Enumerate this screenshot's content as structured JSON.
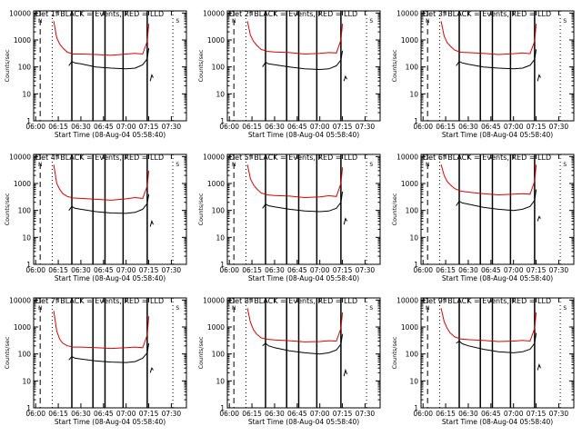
{
  "colors": {
    "events": "#000000",
    "lld": "#e00000",
    "axis": "#000000",
    "background": "#ffffff"
  },
  "legend_text": "BLACK = Events, RED = LLD",
  "xlabel": "Start Time (08-Aug-04 05:58:40)",
  "ylabel": "Counts/sec",
  "chart_data": [
    {
      "type": "line",
      "panel": 1,
      "title": "Det 1f",
      "x_ticks": [
        "06:00",
        "06:15",
        "06:30",
        "06:45",
        "07:00",
        "07:15",
        "07:30"
      ],
      "y_ticks": [
        "1",
        "10",
        "100",
        "1000",
        "10000"
      ],
      "yscale": "log",
      "xlim": [
        "05:58:40",
        "07:40"
      ],
      "ylim": [
        1,
        12000
      ],
      "solid_markers": [
        "06:24",
        "06:38",
        "06:46",
        "06:58",
        "07:14"
      ],
      "dashed_markers": [
        "06:03"
      ],
      "dotted_markers": [
        "06:11",
        "07:31"
      ],
      "annotations": [
        "N",
        "S"
      ],
      "series": [
        {
          "x": [
            "06:12",
            "06:14",
            "06:16",
            "06:18",
            "06:21",
            "06:25",
            "06:30",
            "06:40",
            "06:50",
            "07:00",
            "07:06",
            "07:11",
            "07:14",
            "07:15"
          ],
          "values": [
            5000,
            1200,
            700,
            500,
            350,
            300,
            300,
            290,
            270,
            300,
            320,
            300,
            900,
            4000
          ]
        },
        {
          "x": [
            "06:22",
            "06:24",
            "06:26",
            "06:30",
            "06:40",
            "06:50",
            "07:00",
            "07:06",
            "07:11",
            "07:14",
            "07:15"
          ],
          "values": [
            110,
            160,
            140,
            130,
            100,
            90,
            85,
            90,
            120,
            200,
            500
          ]
        },
        {
          "x": [
            "07:16",
            "07:17",
            "07:18"
          ],
          "values": [
            30,
            50,
            40
          ]
        }
      ]
    },
    {
      "type": "line",
      "panel": 2,
      "title": "Det 2f",
      "x_ticks": [
        "06:00",
        "06:15",
        "06:30",
        "06:45",
        "07:00",
        "07:15",
        "07:30"
      ],
      "y_ticks": [
        "1",
        "10",
        "100",
        "1000",
        "10000"
      ],
      "yscale": "log",
      "xlim": [
        "05:58:40",
        "07:40"
      ],
      "ylim": [
        1,
        12000
      ],
      "solid_markers": [
        "06:24",
        "06:38",
        "06:46",
        "06:58",
        "07:14"
      ],
      "dashed_markers": [
        "06:03"
      ],
      "dotted_markers": [
        "06:11",
        "07:31"
      ],
      "annotations": [
        "N",
        "S"
      ],
      "series": [
        {
          "x": [
            "06:12",
            "06:14",
            "06:16",
            "06:18",
            "06:21",
            "06:25",
            "06:30",
            "06:40",
            "06:50",
            "07:00",
            "07:06",
            "07:11",
            "07:14",
            "07:15"
          ],
          "values": [
            5000,
            1500,
            900,
            650,
            450,
            380,
            360,
            340,
            300,
            320,
            340,
            330,
            1000,
            4000
          ]
        },
        {
          "x": [
            "06:22",
            "06:24",
            "06:26",
            "06:30",
            "06:40",
            "06:50",
            "07:00",
            "07:06",
            "07:11",
            "07:14",
            "07:15"
          ],
          "values": [
            100,
            150,
            130,
            120,
            100,
            85,
            80,
            85,
            110,
            180,
            400
          ]
        },
        {
          "x": [
            "07:16",
            "07:17",
            "07:18"
          ],
          "values": [
            30,
            45,
            35
          ]
        }
      ]
    },
    {
      "type": "line",
      "panel": 3,
      "title": "Det 3f",
      "x_ticks": [
        "06:00",
        "06:15",
        "06:30",
        "06:45",
        "07:00",
        "07:15",
        "07:30"
      ],
      "y_ticks": [
        "1",
        "10",
        "100",
        "1000",
        "10000"
      ],
      "yscale": "log",
      "xlim": [
        "05:58:40",
        "07:40"
      ],
      "ylim": [
        1,
        12000
      ],
      "solid_markers": [
        "06:24",
        "06:38",
        "06:46",
        "06:58",
        "07:14"
      ],
      "dashed_markers": [
        "06:03"
      ],
      "dotted_markers": [
        "06:11",
        "07:31"
      ],
      "annotations": [
        "N",
        "S"
      ],
      "series": [
        {
          "x": [
            "06:12",
            "06:14",
            "06:16",
            "06:18",
            "06:21",
            "06:25",
            "06:30",
            "06:40",
            "06:50",
            "07:00",
            "07:06",
            "07:11",
            "07:14",
            "07:15"
          ],
          "values": [
            5000,
            1400,
            800,
            600,
            420,
            350,
            340,
            320,
            290,
            310,
            330,
            310,
            900,
            4000
          ]
        },
        {
          "x": [
            "06:22",
            "06:24",
            "06:26",
            "06:30",
            "06:40",
            "06:50",
            "07:00",
            "07:06",
            "07:11",
            "07:14",
            "07:15"
          ],
          "values": [
            110,
            160,
            140,
            125,
            100,
            90,
            85,
            90,
            115,
            190,
            450
          ]
        },
        {
          "x": [
            "07:16",
            "07:17",
            "07:18"
          ],
          "values": [
            30,
            50,
            40
          ]
        }
      ]
    },
    {
      "type": "line",
      "panel": 4,
      "title": "Det 4f",
      "x_ticks": [
        "06:00",
        "06:15",
        "06:30",
        "06:45",
        "07:00",
        "07:15",
        "07:30"
      ],
      "y_ticks": [
        "1",
        "10",
        "100",
        "1000",
        "10000"
      ],
      "yscale": "log",
      "xlim": [
        "05:58:40",
        "07:40"
      ],
      "ylim": [
        1,
        12000
      ],
      "solid_markers": [
        "06:24",
        "06:38",
        "06:46",
        "06:58",
        "07:14"
      ],
      "dashed_markers": [
        "06:03"
      ],
      "dotted_markers": [
        "06:11",
        "07:31"
      ],
      "annotations": [
        "N",
        "S"
      ],
      "series": [
        {
          "x": [
            "06:12",
            "06:14",
            "06:16",
            "06:18",
            "06:21",
            "06:25",
            "06:30",
            "06:40",
            "06:50",
            "07:00",
            "07:06",
            "07:11",
            "07:14",
            "07:15"
          ],
          "values": [
            5000,
            1000,
            600,
            420,
            330,
            290,
            280,
            260,
            240,
            270,
            300,
            280,
            800,
            3000
          ]
        },
        {
          "x": [
            "06:22",
            "06:24",
            "06:26",
            "06:30",
            "06:40",
            "06:50",
            "07:00",
            "07:06",
            "07:11",
            "07:14",
            "07:15"
          ],
          "values": [
            100,
            140,
            120,
            110,
            90,
            80,
            78,
            85,
            110,
            180,
            400
          ]
        },
        {
          "x": [
            "07:16",
            "07:17",
            "07:18"
          ],
          "values": [
            25,
            40,
            30
          ]
        }
      ]
    },
    {
      "type": "line",
      "panel": 5,
      "title": "Det 5f",
      "x_ticks": [
        "06:00",
        "06:15",
        "06:30",
        "06:45",
        "07:00",
        "07:15",
        "07:30"
      ],
      "y_ticks": [
        "1",
        "10",
        "100",
        "1000",
        "10000"
      ],
      "yscale": "log",
      "xlim": [
        "05:58:40",
        "07:40"
      ],
      "ylim": [
        1,
        12000
      ],
      "solid_markers": [
        "06:24",
        "06:38",
        "06:46",
        "06:58",
        "07:14"
      ],
      "dashed_markers": [
        "06:03"
      ],
      "dotted_markers": [
        "06:11",
        "07:31"
      ],
      "annotations": [
        "N",
        "S"
      ],
      "series": [
        {
          "x": [
            "06:12",
            "06:14",
            "06:16",
            "06:18",
            "06:21",
            "06:25",
            "06:30",
            "06:40",
            "06:50",
            "07:00",
            "07:06",
            "07:11",
            "07:14",
            "07:15"
          ],
          "values": [
            5000,
            1500,
            900,
            650,
            450,
            380,
            360,
            340,
            300,
            320,
            350,
            330,
            1000,
            4000
          ]
        },
        {
          "x": [
            "06:22",
            "06:24",
            "06:26",
            "06:30",
            "06:40",
            "06:50",
            "07:00",
            "07:06",
            "07:11",
            "07:14",
            "07:15"
          ],
          "values": [
            120,
            170,
            150,
            135,
            110,
            95,
            90,
            95,
            120,
            200,
            500
          ]
        },
        {
          "x": [
            "07:16",
            "07:17",
            "07:18"
          ],
          "values": [
            30,
            50,
            40
          ]
        }
      ]
    },
    {
      "type": "line",
      "panel": 6,
      "title": "Det 6f",
      "x_ticks": [
        "06:00",
        "06:15",
        "06:30",
        "06:45",
        "07:00",
        "07:15",
        "07:30"
      ],
      "y_ticks": [
        "1",
        "10",
        "100",
        "1000",
        "10000"
      ],
      "yscale": "log",
      "xlim": [
        "05:58:40",
        "07:40"
      ],
      "ylim": [
        1,
        12000
      ],
      "solid_markers": [
        "06:24",
        "06:38",
        "06:46",
        "06:58",
        "07:14"
      ],
      "dashed_markers": [
        "06:03"
      ],
      "dotted_markers": [
        "06:11",
        "07:31"
      ],
      "annotations": [
        "N",
        "S"
      ],
      "series": [
        {
          "x": [
            "06:12",
            "06:14",
            "06:16",
            "06:18",
            "06:21",
            "06:25",
            "06:30",
            "06:40",
            "06:50",
            "07:00",
            "07:06",
            "07:11",
            "07:14",
            "07:15"
          ],
          "values": [
            5000,
            2000,
            1200,
            900,
            650,
            520,
            480,
            420,
            380,
            400,
            420,
            400,
            1200,
            5000
          ]
        },
        {
          "x": [
            "06:22",
            "06:24",
            "06:26",
            "06:30",
            "06:40",
            "06:50",
            "07:00",
            "07:06",
            "07:11",
            "07:14",
            "07:15"
          ],
          "values": [
            150,
            220,
            190,
            170,
            130,
            110,
            100,
            110,
            140,
            240,
            600
          ]
        },
        {
          "x": [
            "07:16",
            "07:17",
            "07:18"
          ],
          "values": [
            40,
            60,
            50
          ]
        }
      ]
    },
    {
      "type": "line",
      "panel": 7,
      "title": "Det 7f",
      "x_ticks": [
        "06:00",
        "06:15",
        "06:30",
        "06:45",
        "07:00",
        "07:15",
        "07:30"
      ],
      "y_ticks": [
        "1",
        "10",
        "100",
        "1000",
        "10000"
      ],
      "yscale": "log",
      "xlim": [
        "05:58:40",
        "07:40"
      ],
      "ylim": [
        1,
        12000
      ],
      "solid_markers": [
        "06:24",
        "06:38",
        "06:46",
        "06:58",
        "07:14"
      ],
      "dashed_markers": [
        "06:03"
      ],
      "dotted_markers": [
        "06:11",
        "07:31"
      ],
      "annotations": [
        "N",
        "S"
      ],
      "series": [
        {
          "x": [
            "06:12",
            "06:14",
            "06:16",
            "06:18",
            "06:21",
            "06:25",
            "06:30",
            "06:40",
            "06:50",
            "07:00",
            "07:06",
            "07:11",
            "07:14",
            "07:15"
          ],
          "values": [
            4000,
            700,
            350,
            250,
            200,
            180,
            180,
            170,
            160,
            170,
            180,
            170,
            500,
            2500
          ]
        },
        {
          "x": [
            "06:22",
            "06:24",
            "06:26",
            "06:30",
            "06:40",
            "06:50",
            "07:00",
            "07:06",
            "07:11",
            "07:14",
            "07:15"
          ],
          "values": [
            60,
            80,
            70,
            65,
            55,
            50,
            48,
            52,
            70,
            110,
            250
          ]
        },
        {
          "x": [
            "07:16",
            "07:17",
            "07:18"
          ],
          "values": [
            20,
            30,
            25
          ]
        }
      ]
    },
    {
      "type": "line",
      "panel": 8,
      "title": "Det 8f",
      "x_ticks": [
        "06:00",
        "06:15",
        "06:30",
        "06:45",
        "07:00",
        "07:15",
        "07:30"
      ],
      "y_ticks": [
        "1",
        "10",
        "100",
        "1000",
        "10000"
      ],
      "yscale": "log",
      "xlim": [
        "05:58:40",
        "07:40"
      ],
      "ylim": [
        1,
        12000
      ],
      "solid_markers": [
        "06:24",
        "06:38",
        "06:46",
        "06:58",
        "07:14"
      ],
      "dashed_markers": [
        "06:03"
      ],
      "dotted_markers": [
        "06:11",
        "07:31"
      ],
      "annotations": [
        "N",
        "S"
      ],
      "series": [
        {
          "x": [
            "06:12",
            "06:14",
            "06:16",
            "06:18",
            "06:21",
            "06:25",
            "06:30",
            "06:40",
            "06:50",
            "07:00",
            "07:06",
            "07:11",
            "07:14",
            "07:15"
          ],
          "values": [
            5000,
            1500,
            800,
            550,
            400,
            350,
            330,
            310,
            280,
            290,
            310,
            300,
            900,
            3500
          ]
        },
        {
          "x": [
            "06:22",
            "06:24",
            "06:26",
            "06:30",
            "06:40",
            "06:50",
            "07:00",
            "07:06",
            "07:11",
            "07:14",
            "07:15"
          ],
          "values": [
            200,
            250,
            200,
            170,
            130,
            110,
            100,
            110,
            140,
            230,
            550
          ]
        },
        {
          "x": [
            "07:16",
            "07:17",
            "07:18"
          ],
          "values": [
            15,
            25,
            18
          ]
        }
      ]
    },
    {
      "type": "line",
      "panel": 9,
      "title": "Det 9f",
      "x_ticks": [
        "06:00",
        "06:15",
        "06:30",
        "06:45",
        "07:00",
        "07:15",
        "07:30"
      ],
      "y_ticks": [
        "1",
        "10",
        "100",
        "1000",
        "10000"
      ],
      "yscale": "log",
      "xlim": [
        "05:58:40",
        "07:40"
      ],
      "ylim": [
        1,
        12000
      ],
      "solid_markers": [
        "06:24",
        "06:38",
        "06:46",
        "06:58",
        "07:14"
      ],
      "dashed_markers": [
        "06:03"
      ],
      "dotted_markers": [
        "06:11",
        "07:31"
      ],
      "annotations": [
        "N",
        "S"
      ],
      "series": [
        {
          "x": [
            "06:12",
            "06:14",
            "06:16",
            "06:18",
            "06:21",
            "06:25",
            "06:30",
            "06:40",
            "06:50",
            "07:00",
            "07:06",
            "07:11",
            "07:14",
            "07:15"
          ],
          "values": [
            5000,
            1600,
            900,
            600,
            430,
            360,
            340,
            320,
            290,
            300,
            320,
            300,
            900,
            3500
          ]
        },
        {
          "x": [
            "06:22",
            "06:24",
            "06:26",
            "06:30",
            "06:40",
            "06:50",
            "07:00",
            "07:06",
            "07:11",
            "07:14",
            "07:15"
          ],
          "values": [
            250,
            300,
            240,
            200,
            150,
            120,
            110,
            120,
            150,
            250,
            600
          ]
        },
        {
          "x": [
            "07:16",
            "07:17",
            "07:18"
          ],
          "values": [
            25,
            40,
            30
          ]
        }
      ]
    }
  ]
}
